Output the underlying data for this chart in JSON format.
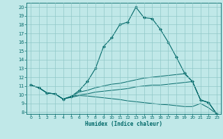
{
  "xlabel": "Humidex (Indice chaleur)",
  "bg_color": "#c0e8e8",
  "line_color": "#006868",
  "grid_color": "#90c8c8",
  "xlim": [
    -0.5,
    23.5
  ],
  "ylim": [
    7.8,
    20.5
  ],
  "yticks": [
    8,
    9,
    10,
    11,
    12,
    13,
    14,
    15,
    16,
    17,
    18,
    19,
    20
  ],
  "xticks": [
    0,
    1,
    2,
    3,
    4,
    5,
    6,
    7,
    8,
    9,
    10,
    11,
    12,
    13,
    14,
    15,
    16,
    17,
    18,
    19,
    20,
    21,
    22,
    23
  ],
  "lines": [
    {
      "x": [
        0,
        1,
        2,
        3,
        4,
        5,
        6,
        7,
        8,
        9,
        10,
        11,
        12,
        13,
        14,
        15,
        16,
        17,
        18,
        19,
        20,
        21,
        22,
        23
      ],
      "y": [
        11.1,
        10.8,
        10.2,
        10.1,
        9.5,
        9.8,
        10.5,
        11.5,
        13.0,
        15.5,
        16.5,
        18.0,
        18.3,
        20.0,
        18.8,
        18.7,
        17.5,
        16.0,
        14.3,
        12.5,
        11.5,
        9.4,
        9.1,
        7.8
      ],
      "markers": true
    },
    {
      "x": [
        0,
        1,
        2,
        3,
        4,
        5,
        6,
        7,
        8,
        9,
        10,
        11,
        12,
        13,
        14,
        15,
        16,
        17,
        18,
        19,
        20,
        21,
        22,
        23
      ],
      "y": [
        11.1,
        10.8,
        10.2,
        10.1,
        9.5,
        9.8,
        10.3,
        10.5,
        10.8,
        11.0,
        11.2,
        11.3,
        11.5,
        11.7,
        11.9,
        12.0,
        12.1,
        12.2,
        12.3,
        12.4,
        11.5,
        9.4,
        9.1,
        7.8
      ],
      "markers": false
    },
    {
      "x": [
        0,
        1,
        2,
        3,
        4,
        5,
        6,
        7,
        8,
        9,
        10,
        11,
        12,
        13,
        14,
        15,
        16,
        17,
        18,
        19,
        20,
        21,
        22,
        23
      ],
      "y": [
        11.1,
        10.8,
        10.2,
        10.1,
        9.5,
        9.8,
        10.0,
        10.1,
        10.3,
        10.4,
        10.5,
        10.6,
        10.7,
        10.9,
        11.0,
        11.1,
        11.1,
        11.2,
        11.3,
        11.4,
        11.5,
        9.4,
        9.1,
        7.8
      ],
      "markers": false
    },
    {
      "x": [
        0,
        1,
        2,
        3,
        4,
        5,
        6,
        7,
        8,
        9,
        10,
        11,
        12,
        13,
        14,
        15,
        16,
        17,
        18,
        19,
        20,
        21,
        22,
        23
      ],
      "y": [
        11.1,
        10.8,
        10.2,
        10.1,
        9.5,
        9.7,
        9.9,
        9.85,
        9.75,
        9.65,
        9.55,
        9.45,
        9.3,
        9.2,
        9.1,
        9.0,
        8.9,
        8.85,
        8.75,
        8.65,
        8.65,
        9.0,
        8.5,
        7.8
      ],
      "markers": false
    }
  ]
}
